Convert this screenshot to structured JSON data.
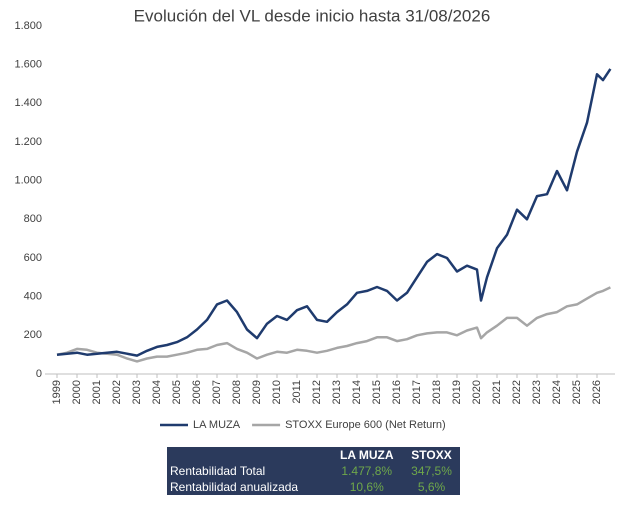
{
  "chart_data": {
    "type": "line",
    "title": "Evolución del VL desde inicio hasta 31/08/2026",
    "x": [
      1999,
      1999.5,
      2000,
      2000.5,
      2001,
      2001.5,
      2002,
      2002.5,
      2003,
      2003.5,
      2004,
      2004.5,
      2005,
      2005.5,
      2006,
      2006.5,
      2007,
      2007.5,
      2008,
      2008.5,
      2009,
      2009.5,
      2010,
      2010.5,
      2011,
      2011.5,
      2012,
      2012.5,
      2013,
      2013.5,
      2014,
      2014.5,
      2015,
      2015.5,
      2016,
      2016.5,
      2017,
      2017.5,
      2018,
      2018.5,
      2019,
      2019.5,
      2020,
      2020.2,
      2020.5,
      2021,
      2021.5,
      2022,
      2022.5,
      2023,
      2023.5,
      2024,
      2024.5,
      2025,
      2025.5,
      2026,
      2026.3,
      2026.67
    ],
    "series": [
      {
        "name": "LA MUZA",
        "color": "#1f3b6e",
        "values": [
          100,
          105,
          110,
          100,
          105,
          110,
          115,
          105,
          95,
          120,
          140,
          150,
          165,
          190,
          230,
          280,
          360,
          380,
          320,
          230,
          185,
          260,
          300,
          280,
          330,
          350,
          280,
          270,
          320,
          360,
          420,
          430,
          450,
          430,
          380,
          420,
          500,
          580,
          620,
          600,
          530,
          560,
          540,
          380,
          500,
          650,
          720,
          850,
          800,
          920,
          930,
          1050,
          950,
          1150,
          1300,
          1550,
          1520,
          1578
        ]
      },
      {
        "name": "STOXX Europe 600 (Net Return)",
        "color": "#a6a6a6",
        "values": [
          100,
          110,
          130,
          125,
          110,
          105,
          100,
          80,
          65,
          80,
          90,
          90,
          100,
          110,
          125,
          130,
          150,
          160,
          130,
          110,
          80,
          100,
          115,
          110,
          125,
          120,
          110,
          120,
          135,
          145,
          160,
          170,
          190,
          190,
          170,
          180,
          200,
          210,
          215,
          215,
          200,
          225,
          240,
          185,
          215,
          250,
          290,
          290,
          250,
          290,
          310,
          320,
          350,
          360,
          390,
          420,
          430,
          448
        ]
      }
    ],
    "xlim": [
      1998.4,
      2026.9
    ],
    "xticks": [
      1999,
      2000,
      2001,
      2002,
      2003,
      2004,
      2005,
      2006,
      2007,
      2008,
      2009,
      2010,
      2011,
      2012,
      2013,
      2014,
      2015,
      2016,
      2017,
      2018,
      2019,
      2020,
      2021,
      2022,
      2023,
      2024,
      2025,
      2026
    ],
    "ylim": [
      0,
      1800
    ],
    "yticks": [
      0,
      200,
      400,
      600,
      800,
      {
        "value": 1000,
        "label": "1.000"
      },
      {
        "value": 1200,
        "label": "1.200"
      },
      {
        "value": 1400,
        "label": "1.400"
      },
      {
        "value": 1600,
        "label": "1.600"
      },
      {
        "value": 1800,
        "label": "1.800"
      }
    ],
    "grid": false,
    "legend": "bottom"
  },
  "table": {
    "header": [
      "LA MUZA",
      "STOXX"
    ],
    "rows": [
      [
        "Rentabilidad Total",
        "1.477,8%",
        "347,5%"
      ],
      [
        "Rentabilidad anualizada",
        "10,6%",
        "5,6%"
      ]
    ]
  }
}
